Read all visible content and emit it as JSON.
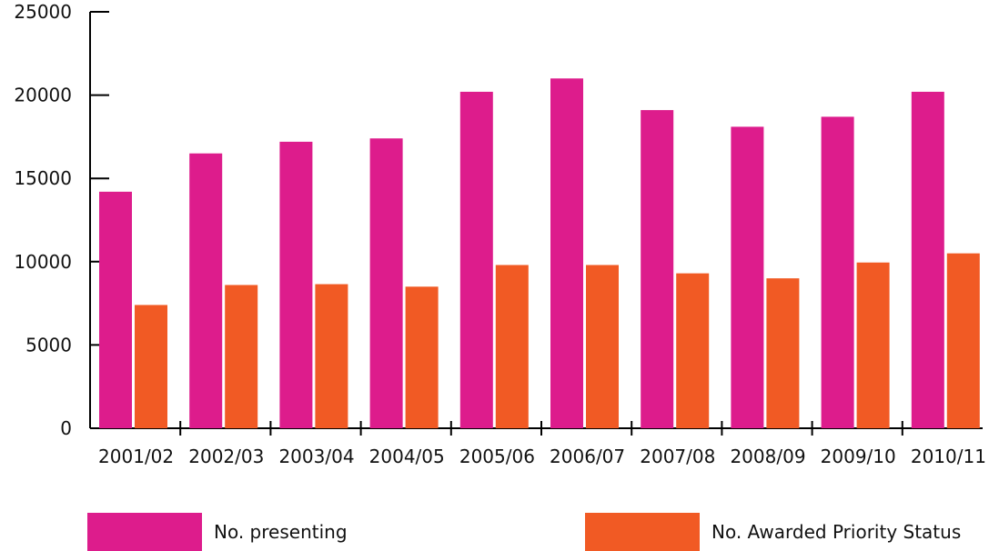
{
  "chart_data": {
    "type": "bar",
    "title": "",
    "xlabel": "",
    "ylabel": "",
    "categories": [
      "2001/02",
      "2002/03",
      "2003/04",
      "2004/05",
      "2005/06",
      "2006/07",
      "2007/08",
      "2008/09",
      "2009/10",
      "2010/11"
    ],
    "series": [
      {
        "name": "No. presenting",
        "color": "#DD1C8C",
        "values": [
          14200,
          16500,
          17200,
          17400,
          20200,
          21000,
          19100,
          18100,
          18700,
          20200
        ]
      },
      {
        "name": "No. Awarded Priority Status",
        "color": "#F15A24",
        "values": [
          7400,
          8600,
          8650,
          8500,
          9800,
          9800,
          9300,
          9000,
          9950,
          10500
        ]
      }
    ],
    "ylim": [
      0,
      25000
    ],
    "yticks": [
      0,
      5000,
      10000,
      15000,
      20000,
      25000
    ],
    "grid": false,
    "legend_position": "bottom"
  }
}
